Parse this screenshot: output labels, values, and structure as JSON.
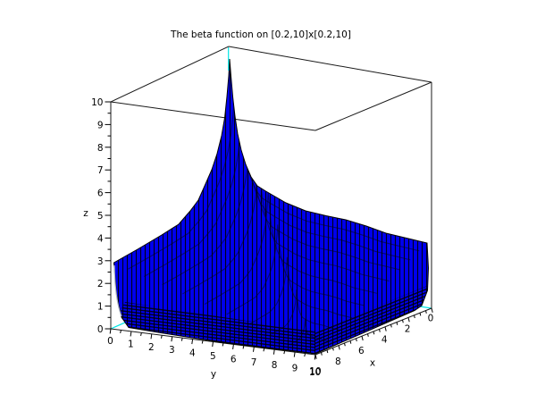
{
  "title": "The beta function on [0.2,10]x[0.2,10]",
  "axes": {
    "x": {
      "label": "x",
      "range": [
        0,
        10
      ],
      "tick_labels": [
        "0",
        "2",
        "4",
        "6",
        "8",
        "10"
      ]
    },
    "y": {
      "label": "y",
      "range": [
        0,
        10
      ],
      "tick_labels": [
        "0",
        "1",
        "2",
        "3",
        "4",
        "5",
        "6",
        "7",
        "8",
        "9",
        "10"
      ]
    },
    "z": {
      "label": "z",
      "range": [
        0,
        10
      ],
      "tick_labels": [
        "0",
        "1",
        "2",
        "3",
        "4",
        "5",
        "6",
        "7",
        "8",
        "9",
        "10"
      ]
    }
  },
  "colors": {
    "surface": "#0000ee",
    "mesh": "#000000",
    "box": "#1a1a1a",
    "hidden_axis": "#00e6e6",
    "background": "#ffffff"
  },
  "chart_data": {
    "type": "heatmap",
    "title": "The beta function on [0.2,10]x[0.2,10]",
    "function": "z = beta(x,y)",
    "xlabel": "x",
    "ylabel": "y",
    "zlabel": "z",
    "x_domain": [
      0.2,
      10
    ],
    "y_domain": [
      0.2,
      10
    ],
    "xlim": [
      0,
      10
    ],
    "ylim": [
      0,
      10
    ],
    "zlim": [
      0,
      10
    ],
    "x_ticks": [
      0,
      2,
      4,
      6,
      8,
      10
    ],
    "y_ticks": [
      0,
      1,
      2,
      3,
      4,
      5,
      6,
      7,
      8,
      9,
      10
    ],
    "z_ticks": [
      0,
      1,
      2,
      3,
      4,
      5,
      6,
      7,
      8,
      9,
      10
    ],
    "sample_x": [
      0.2,
      0.5,
      1,
      2,
      5,
      10
    ],
    "sample_y": [
      0.2,
      0.5,
      1,
      2,
      5,
      10
    ],
    "z_values": [
      [
        9.5,
        6.27,
        5.0,
        4.17,
        3.38,
        2.92
      ],
      [
        6.27,
        3.14,
        2.0,
        1.33,
        0.81,
        0.57
      ],
      [
        5.0,
        2.0,
        1.0,
        0.5,
        0.2,
        0.1
      ],
      [
        4.17,
        1.33,
        0.5,
        0.167,
        0.033,
        0.009
      ],
      [
        3.38,
        0.81,
        0.2,
        0.033,
        0.0016,
        0.0001
      ],
      [
        2.92,
        0.57,
        0.1,
        0.009,
        0.0001,
        1e-06
      ]
    ],
    "peak": {
      "x": 0.2,
      "y": 0.2,
      "z": 9.5
    },
    "legend": "none",
    "grid": "mesh wireframe on surface, 3d box frame",
    "style": "3d surface, flat blue facets with black mesh edges, hidden box edges drawn cyan"
  }
}
